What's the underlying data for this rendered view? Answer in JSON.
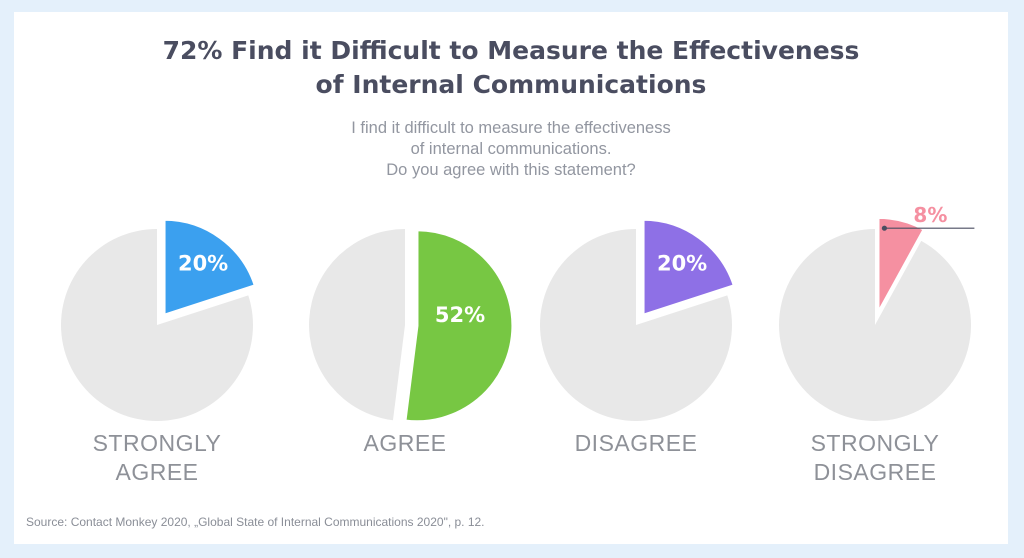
{
  "title_lines": [
    "72% Find it Difficult to Measure the Effectiveness",
    "of Internal Communications"
  ],
  "question_lines": [
    "I find it difficult to measure the effectiveness",
    "of internal communications.",
    "Do you agree with this statement?"
  ],
  "source": "Source: Contact Monkey 2020, „Global State of Internal Communications 2020\", p. 12.",
  "colors": {
    "background": "#e4f0fb",
    "pie_rest": "#e8e8e8",
    "strongly_agree": "#3ba0ef",
    "agree": "#77c743",
    "disagree": "#8e70e6",
    "strongly_disagree": "#f590a1"
  },
  "chart_data": {
    "type": "pie",
    "question": "I find it difficult to measure the effectiveness of internal communications. Do you agree with this statement?",
    "categories": [
      "STRONGLY AGREE",
      "AGREE",
      "DISAGREE",
      "STRONGLY DISAGREE"
    ],
    "category_lines": [
      [
        "STRONGLY",
        "AGREE"
      ],
      [
        "AGREE"
      ],
      [
        "DISAGREE"
      ],
      [
        "STRONGLY",
        "DISAGREE"
      ]
    ],
    "values": [
      20,
      52,
      20,
      8
    ],
    "value_labels": [
      "20%",
      "52%",
      "20%",
      "8%"
    ],
    "unit": "%",
    "colors": [
      "#3ba0ef",
      "#77c743",
      "#8e70e6",
      "#f590a1"
    ]
  }
}
